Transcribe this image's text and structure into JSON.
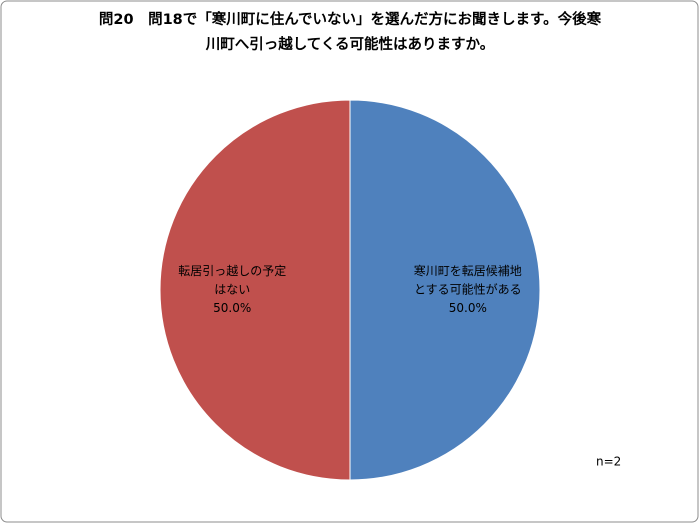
{
  "chart_data": {
    "type": "pie",
    "title": [
      "問20　問18で「寒川町に住んでいない」を選んだ方にお聞きします。今後寒",
      "川町へ引っ越してくる可能性はありますか。"
    ],
    "categories": [
      [
        "寒川町を転居候補地",
        "とする可能性がある"
      ],
      [
        "転居引っ越しの予定",
        "はない"
      ]
    ],
    "values": [
      50,
      50
    ],
    "value_labels": [
      "50.0%",
      "50.0%"
    ],
    "colors": [
      "#4f81bd",
      "#c0504d"
    ],
    "annotation": "n=2"
  }
}
